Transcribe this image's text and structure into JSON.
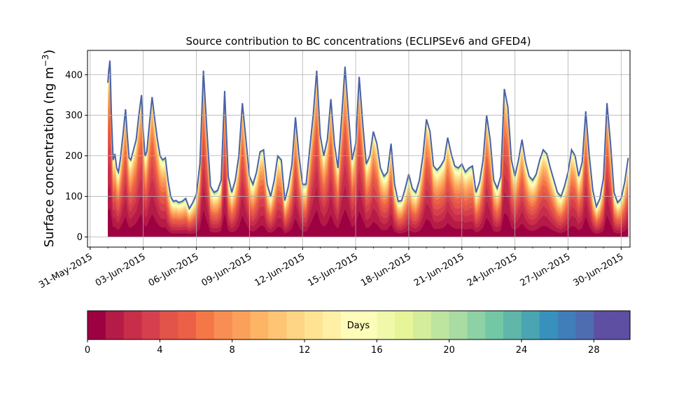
{
  "chart_data": {
    "type": "area",
    "title": "Source contribution to BC concentrations (ECLIPSEv6 and GFED4)",
    "ylabel_main": "Surface concentration (ng m",
    "ylabel_sup": "−3",
    "ylabel_close": ")",
    "xlabel": "",
    "ylim": [
      -25,
      460
    ],
    "yticks": [
      0,
      100,
      200,
      300,
      400
    ],
    "xlim": [
      -0.15,
      30.5
    ],
    "xticks": [
      {
        "x": 0,
        "label": "31-May-2015"
      },
      {
        "x": 3,
        "label": "03-Jun-2015"
      },
      {
        "x": 6,
        "label": "06-Jun-2015"
      },
      {
        "x": 9,
        "label": "09-Jun-2015"
      },
      {
        "x": 12,
        "label": "12-Jun-2015"
      },
      {
        "x": 15,
        "label": "15-Jun-2015"
      },
      {
        "x": 18,
        "label": "18-Jun-2015"
      },
      {
        "x": 21,
        "label": "21-Jun-2015"
      },
      {
        "x": 24,
        "label": "24-Jun-2015"
      },
      {
        "x": 27,
        "label": "27-Jun-2015"
      },
      {
        "x": 30,
        "label": "30-Jun-2015"
      }
    ],
    "grid": true,
    "stack_layers": 30,
    "total_series": {
      "x": [
        1,
        1.05,
        1.12,
        1.2,
        1.3,
        1.4,
        1.5,
        1.6,
        1.7,
        1.85,
        2.0,
        2.1,
        2.2,
        2.3,
        2.45,
        2.6,
        2.75,
        2.9,
        3.0,
        3.1,
        3.2,
        3.35,
        3.5,
        3.65,
        3.8,
        3.95,
        4.1,
        4.25,
        4.4,
        4.55,
        4.7,
        4.85,
        5.0,
        5.2,
        5.4,
        5.6,
        5.8,
        6.0,
        6.2,
        6.4,
        6.6,
        6.8,
        7.0,
        7.2,
        7.4,
        7.6,
        7.8,
        8.0,
        8.2,
        8.4,
        8.6,
        8.8,
        9.0,
        9.2,
        9.4,
        9.6,
        9.8,
        10.0,
        10.2,
        10.4,
        10.6,
        10.8,
        11.0,
        11.2,
        11.4,
        11.6,
        11.8,
        12.0,
        12.2,
        12.4,
        12.6,
        12.8,
        13.0,
        13.2,
        13.4,
        13.6,
        13.8,
        14.0,
        14.2,
        14.4,
        14.6,
        14.8,
        15.0,
        15.2,
        15.4,
        15.6,
        15.8,
        16.0,
        16.2,
        16.4,
        16.6,
        16.8,
        17.0,
        17.2,
        17.4,
        17.6,
        17.8,
        18.0,
        18.2,
        18.4,
        18.6,
        18.8,
        19.0,
        19.2,
        19.4,
        19.6,
        19.8,
        20.0,
        20.2,
        20.4,
        20.6,
        20.8,
        21.0,
        21.2,
        21.4,
        21.6,
        21.8,
        22.0,
        22.2,
        22.4,
        22.6,
        22.8,
        23.0,
        23.2,
        23.4,
        23.6,
        23.8,
        24.0,
        24.2,
        24.4,
        24.6,
        24.8,
        25.0,
        25.2,
        25.4,
        25.6,
        25.8,
        26.0,
        26.2,
        26.4,
        26.6,
        26.8,
        27.0,
        27.2,
        27.4,
        27.6,
        27.8,
        28.0,
        28.2,
        28.4,
        28.6,
        28.8,
        29.0,
        29.2,
        29.4,
        29.6,
        29.8,
        30.0,
        30.2,
        30.4
      ],
      "y": [
        380,
        410,
        435,
        300,
        190,
        205,
        170,
        160,
        190,
        250,
        315,
        250,
        195,
        190,
        215,
        240,
        300,
        350,
        260,
        200,
        210,
        280,
        345,
        290,
        240,
        200,
        190,
        195,
        140,
        100,
        88,
        90,
        85,
        88,
        95,
        70,
        85,
        105,
        180,
        410,
        260,
        125,
        110,
        115,
        140,
        360,
        150,
        110,
        140,
        200,
        330,
        240,
        150,
        130,
        160,
        210,
        215,
        130,
        100,
        140,
        200,
        190,
        90,
        125,
        180,
        295,
        200,
        130,
        130,
        215,
        300,
        410,
        250,
        200,
        240,
        340,
        230,
        170,
        290,
        420,
        300,
        190,
        230,
        395,
        280,
        180,
        200,
        260,
        230,
        170,
        150,
        160,
        230,
        130,
        88,
        90,
        120,
        155,
        120,
        110,
        140,
        200,
        290,
        260,
        175,
        165,
        175,
        190,
        245,
        205,
        175,
        170,
        180,
        160,
        170,
        175,
        110,
        135,
        190,
        300,
        240,
        140,
        120,
        150,
        365,
        320,
        190,
        150,
        190,
        240,
        185,
        150,
        140,
        155,
        190,
        215,
        205,
        170,
        140,
        110,
        100,
        125,
        160,
        215,
        200,
        150,
        185,
        310,
        200,
        115,
        75,
        95,
        145,
        330,
        230,
        110,
        85,
        95,
        135,
        195
      ]
    },
    "colorbar": {
      "label": "Days",
      "range": [
        0,
        30
      ],
      "ticks": [
        0,
        4,
        8,
        12,
        16,
        20,
        24,
        28
      ],
      "colors": [
        "#9e0142",
        "#b41b47",
        "#c82d4a",
        "#d6404e",
        "#e2534a",
        "#eb6046",
        "#f57748",
        "#f88e53",
        "#fba05b",
        "#fdb465",
        "#fdc574",
        "#fed584",
        "#fee393",
        "#fff0a6",
        "#fffbb8",
        "#fbfdb8",
        "#f0f9aa",
        "#e6f598",
        "#d3ed9c",
        "#bee5a0",
        "#a8dca2",
        "#8dd1a4",
        "#74c7a5",
        "#5fb6a9",
        "#4aa4b1",
        "#3891bc",
        "#3f7eb8",
        "#4e6cb0",
        "#5e4fa2",
        "#5e4fa2"
      ]
    }
  }
}
